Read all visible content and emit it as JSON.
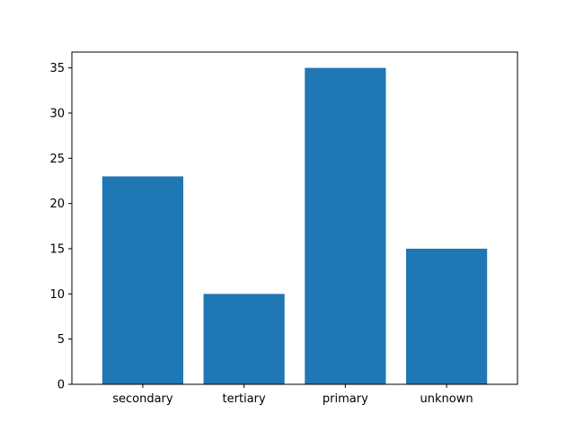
{
  "chart_data": {
    "type": "bar",
    "title": "",
    "xlabel": "",
    "ylabel": "",
    "categories": [
      "secondary",
      "tertiary",
      "primary",
      "unknown"
    ],
    "values": [
      23,
      10,
      35,
      15
    ],
    "ylim": [
      0,
      36.75
    ],
    "yticks": [
      0,
      5,
      10,
      15,
      20,
      25,
      30,
      35
    ],
    "grid": false,
    "bar_color": "#1f77b4"
  }
}
